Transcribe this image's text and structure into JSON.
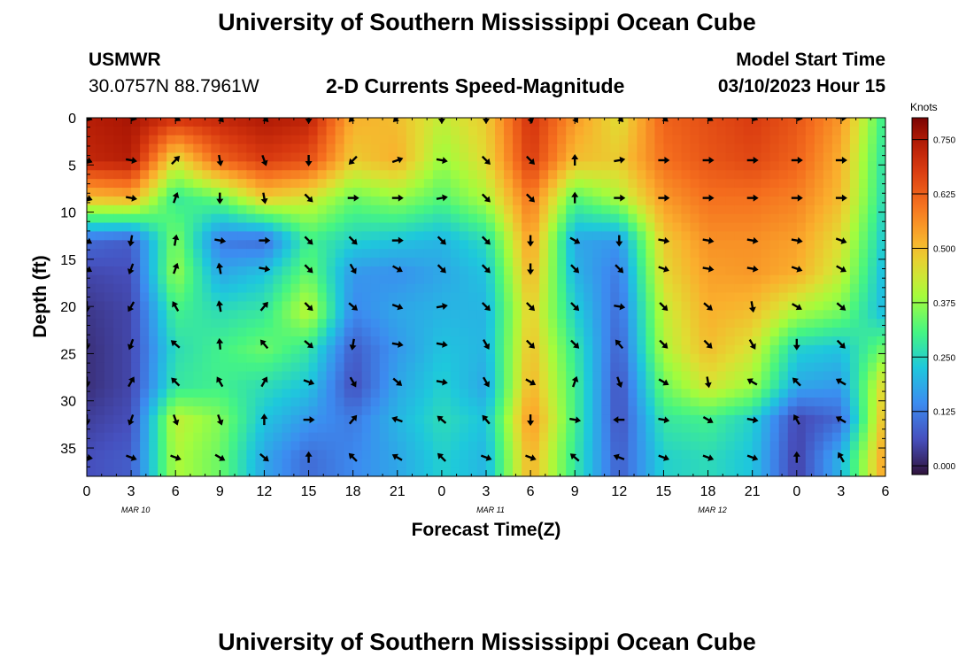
{
  "header": {
    "title": "University of Southern Mississippi Ocean Cube",
    "station_name": "USMWR",
    "station_coords": "30.0757N  88.7961W",
    "subtitle": "2-D Currents Speed-Magnitude",
    "model_label": "Model Start Time",
    "model_time": "03/10/2023 Hour 15"
  },
  "footer": {
    "title": "University of Southern Mississippi Ocean Cube"
  },
  "chart_data": {
    "type": "heatmap",
    "xlabel": "Forecast Time(Z)",
    "ylabel": "Depth (ft)",
    "x_tick_labels": [
      "0",
      "3",
      "6",
      "9",
      "12",
      "15",
      "18",
      "21",
      "0",
      "3",
      "6",
      "9",
      "12",
      "15",
      "18",
      "21",
      "0",
      "3",
      "6"
    ],
    "day_labels": [
      {
        "label": "MAR 10",
        "tick_index": 1.1
      },
      {
        "label": "MAR 11",
        "tick_index": 9.1
      },
      {
        "label": "MAR 12",
        "tick_index": 14.1
      }
    ],
    "xlim_hours_from_first_tick": [
      0,
      54
    ],
    "ylim_ft": [
      38,
      0
    ],
    "y_ticks": [
      0,
      5,
      10,
      15,
      20,
      25,
      30,
      35
    ],
    "colorbar": {
      "label": "Knots",
      "range": [
        -0.02,
        0.8
      ],
      "ticks": [
        "0.000",
        "0.125",
        "0.250",
        "0.375",
        "0.500",
        "0.625",
        "0.750"
      ],
      "tick_values": [
        0.0,
        0.125,
        0.25,
        0.375,
        0.5,
        0.625,
        0.75
      ]
    },
    "speed_field_depths_ft": [
      0,
      4.5,
      8.5,
      13,
      16.5,
      20.5,
      24.5,
      28.5,
      32,
      36
    ],
    "speed_field_times_h": [
      0,
      3,
      6,
      9,
      12,
      15,
      18,
      21,
      24,
      27,
      30,
      33,
      36,
      39,
      42,
      45,
      48,
      51,
      54
    ],
    "speed_field_knots": [
      [
        0.74,
        0.76,
        0.7,
        0.72,
        0.75,
        0.73,
        0.52,
        0.5,
        0.42,
        0.48,
        0.7,
        0.55,
        0.45,
        0.62,
        0.65,
        0.68,
        0.64,
        0.55,
        0.28
      ],
      [
        0.72,
        0.74,
        0.45,
        0.62,
        0.68,
        0.65,
        0.48,
        0.52,
        0.38,
        0.46,
        0.68,
        0.5,
        0.48,
        0.6,
        0.64,
        0.66,
        0.62,
        0.52,
        0.26
      ],
      [
        0.5,
        0.52,
        0.28,
        0.34,
        0.48,
        0.44,
        0.34,
        0.38,
        0.32,
        0.4,
        0.6,
        0.32,
        0.4,
        0.55,
        0.6,
        0.6,
        0.58,
        0.5,
        0.25
      ],
      [
        0.1,
        0.08,
        0.36,
        0.12,
        0.1,
        0.3,
        0.24,
        0.22,
        0.2,
        0.26,
        0.55,
        0.18,
        0.16,
        0.48,
        0.56,
        0.56,
        0.54,
        0.45,
        0.22
      ],
      [
        0.05,
        0.06,
        0.38,
        0.18,
        0.22,
        0.34,
        0.16,
        0.15,
        0.18,
        0.22,
        0.52,
        0.2,
        0.12,
        0.46,
        0.54,
        0.55,
        0.52,
        0.42,
        0.2
      ],
      [
        0.03,
        0.05,
        0.3,
        0.26,
        0.28,
        0.42,
        0.14,
        0.18,
        0.2,
        0.2,
        0.48,
        0.24,
        0.1,
        0.42,
        0.52,
        0.5,
        0.4,
        0.35,
        0.2
      ],
      [
        0.02,
        0.05,
        0.26,
        0.3,
        0.34,
        0.28,
        0.08,
        0.16,
        0.22,
        0.2,
        0.5,
        0.28,
        0.08,
        0.4,
        0.5,
        0.44,
        0.24,
        0.22,
        0.35
      ],
      [
        0.02,
        0.05,
        0.28,
        0.3,
        0.26,
        0.22,
        0.06,
        0.18,
        0.24,
        0.18,
        0.52,
        0.3,
        0.06,
        0.34,
        0.44,
        0.38,
        0.18,
        0.16,
        0.48
      ],
      [
        0.04,
        0.06,
        0.42,
        0.36,
        0.22,
        0.16,
        0.12,
        0.2,
        0.26,
        0.22,
        0.56,
        0.3,
        0.06,
        0.28,
        0.3,
        0.24,
        0.05,
        0.1,
        0.52
      ],
      [
        0.06,
        0.08,
        0.4,
        0.34,
        0.18,
        0.1,
        0.14,
        0.18,
        0.24,
        0.2,
        0.52,
        0.28,
        0.08,
        0.24,
        0.26,
        0.22,
        0.04,
        0.2,
        0.55
      ]
    ],
    "vector_rows_depth_ft": [
      0,
      4.5,
      8.5,
      13,
      16,
      20,
      24,
      28,
      32,
      36
    ],
    "vector_cols_hours": [
      0,
      3,
      6,
      9,
      12,
      15,
      18,
      21,
      24,
      27,
      30,
      33,
      36,
      39,
      42,
      45,
      48,
      51
    ],
    "vector_directions_deg": [
      [
        110,
        105,
        120,
        140,
        135,
        180,
        225,
        225,
        180,
        180,
        165,
        150,
        135,
        130,
        120,
        110,
        100,
        90
      ],
      [
        110,
        100,
        45,
        170,
        160,
        180,
        225,
        70,
        100,
        135,
        135,
        0,
        80,
        90,
        90,
        90,
        90,
        90
      ],
      [
        110,
        100,
        20,
        180,
        170,
        135,
        90,
        90,
        80,
        135,
        135,
        0,
        90,
        90,
        90,
        90,
        90,
        90
      ],
      [
        120,
        190,
        10,
        100,
        90,
        135,
        135,
        90,
        135,
        135,
        180,
        120,
        180,
        100,
        100,
        100,
        100,
        110
      ],
      [
        120,
        200,
        20,
        350,
        100,
        135,
        150,
        120,
        135,
        135,
        180,
        135,
        135,
        110,
        100,
        100,
        110,
        120
      ],
      [
        180,
        210,
        330,
        350,
        40,
        135,
        130,
        110,
        80,
        135,
        135,
        135,
        100,
        135,
        130,
        170,
        120,
        130
      ],
      [
        180,
        200,
        310,
        355,
        320,
        130,
        190,
        100,
        100,
        150,
        135,
        135,
        320,
        135,
        135,
        150,
        180,
        135
      ],
      [
        180,
        30,
        315,
        330,
        30,
        110,
        150,
        130,
        100,
        150,
        120,
        20,
        160,
        120,
        170,
        300,
        315,
        300
      ],
      [
        180,
        200,
        160,
        160,
        0,
        90,
        40,
        290,
        310,
        320,
        180,
        100,
        270,
        100,
        120,
        100,
        330,
        300
      ],
      [
        100,
        110,
        110,
        120,
        130,
        0,
        315,
        300,
        315,
        110,
        110,
        310,
        290,
        110,
        110,
        110,
        0,
        330
      ]
    ]
  }
}
